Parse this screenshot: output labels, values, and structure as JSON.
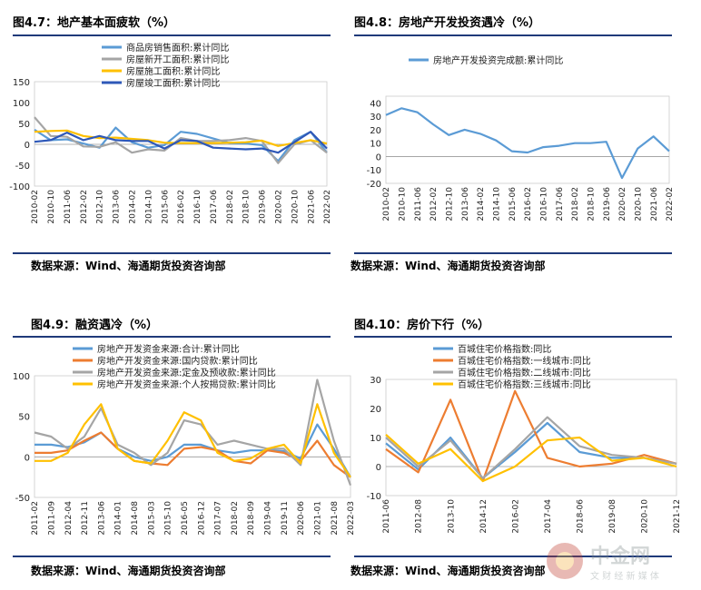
{
  "panels": [
    {
      "title": "图4.7：地产基本面疲软（%）",
      "source": "数据来源：Wind、海通期货投资咨询部"
    },
    {
      "title": "图4.8：房地产开发投资遇冷（%）",
      "source": "数据来源：Wind、海通期货投资咨询部"
    },
    {
      "title": "图4.9：融资遇冷（%）",
      "source": "数据来源：Wind、海通期货投资咨询部"
    },
    {
      "title": "图4.10：房价下行（%）",
      "source": "数据来源：Wind、海通期货投资咨询部"
    }
  ],
  "watermark": {
    "brand": "中金网",
    "sub": "文 财 经 新 媒 体"
  },
  "chart_data": [
    {
      "type": "line",
      "ylim": [
        -100,
        150
      ],
      "yticks": [
        -100,
        -50,
        0,
        50,
        100,
        150
      ],
      "categories": [
        "2010-02",
        "2010-10",
        "2011-06",
        "2012-02",
        "2012-10",
        "2013-06",
        "2014-02",
        "2014-10",
        "2015-06",
        "2016-02",
        "2016-10",
        "2017-06",
        "2018-02",
        "2018-10",
        "2019-06",
        "2020-02",
        "2020-10",
        "2021-06",
        "2022-02"
      ],
      "series": [
        {
          "name": "商品房销售面积:累计同比",
          "color": "#5b9bd5",
          "values": [
            35,
            10,
            12,
            2,
            -8,
            40,
            5,
            -8,
            -2,
            30,
            25,
            14,
            3,
            2,
            -2,
            -40,
            10,
            30,
            -20
          ]
        },
        {
          "name": "房屋新开工面积:累计同比",
          "color": "#a5a5a5",
          "values": [
            65,
            20,
            18,
            -5,
            -6,
            5,
            -20,
            -12,
            -15,
            15,
            8,
            8,
            10,
            15,
            8,
            -45,
            0,
            10,
            -20
          ]
        },
        {
          "name": "房屋施工面积:累计同比",
          "color": "#ffc000",
          "values": [
            30,
            32,
            33,
            20,
            15,
            16,
            13,
            10,
            4,
            3,
            3,
            3,
            4,
            5,
            9,
            -4,
            3,
            10,
            2
          ]
        },
        {
          "name": "房屋竣工面积:累计同比",
          "color": "#2e58b8",
          "values": [
            6,
            10,
            28,
            10,
            20,
            10,
            8,
            8,
            -10,
            10,
            8,
            -8,
            -10,
            -12,
            -10,
            -20,
            5,
            30,
            -10
          ]
        }
      ]
    },
    {
      "type": "line",
      "ylim": [
        -20,
        45
      ],
      "yticks": [
        -20,
        -10,
        0,
        10,
        20,
        30,
        40
      ],
      "categories": [
        "2010-02",
        "2010-10",
        "2011-06",
        "2012-02",
        "2012-10",
        "2013-06",
        "2014-02",
        "2014-10",
        "2015-06",
        "2016-02",
        "2016-10",
        "2017-06",
        "2018-02",
        "2018-10",
        "2019-06",
        "2020-02",
        "2020-10",
        "2021-06",
        "2022-02"
      ],
      "series": [
        {
          "name": "房地产开发投资完成额:累计同比",
          "color": "#5b9bd5",
          "values": [
            31,
            36,
            33,
            24,
            16,
            20,
            17,
            12,
            4,
            3,
            7,
            8,
            10,
            10,
            11,
            -16,
            6,
            15,
            4
          ]
        }
      ]
    },
    {
      "type": "line",
      "ylim": [
        -50,
        100
      ],
      "yticks": [
        -50,
        0,
        50,
        100
      ],
      "categories": [
        "2011-02",
        "2011-09",
        "2012-04",
        "2012-11",
        "2013-06",
        "2014-01",
        "2014-08",
        "2015-03",
        "2015-10",
        "2016-05",
        "2016-12",
        "2017-07",
        "2018-02",
        "2018-09",
        "2019-04",
        "2019-11",
        "2020-06",
        "2021-01",
        "2021-08",
        "2022-03"
      ],
      "series": [
        {
          "name": "房地产开发资金来源:合计:累计同比",
          "color": "#5b9bd5",
          "values": [
            15,
            15,
            12,
            18,
            30,
            10,
            0,
            -5,
            0,
            15,
            15,
            8,
            5,
            8,
            8,
            7,
            -2,
            40,
            10,
            -25
          ]
        },
        {
          "name": "房地产开发资金来源:国内贷款:累计同比",
          "color": "#ed7d31",
          "values": [
            5,
            5,
            8,
            20,
            30,
            10,
            -5,
            -8,
            -10,
            10,
            12,
            8,
            -5,
            -8,
            8,
            5,
            -5,
            20,
            -10,
            -25
          ]
        },
        {
          "name": "房地产开发资金来源:定金及预收款:累计同比",
          "color": "#a5a5a5",
          "values": [
            30,
            25,
            10,
            25,
            60,
            15,
            5,
            -10,
            5,
            45,
            40,
            15,
            20,
            15,
            10,
            10,
            -10,
            95,
            20,
            -35
          ]
        },
        {
          "name": "房地产开发资金来源:个人按揭贷款:累计同比",
          "color": "#ffc000",
          "values": [
            -5,
            -5,
            5,
            40,
            65,
            10,
            -5,
            -8,
            20,
            55,
            45,
            5,
            -5,
            -2,
            10,
            15,
            -8,
            65,
            5,
            -25
          ]
        }
      ]
    },
    {
      "type": "line",
      "ylim": [
        -10,
        30
      ],
      "yticks": [
        -10,
        0,
        10,
        20,
        30
      ],
      "categories": [
        "2011-06",
        "2012-08",
        "2013-10",
        "2014-12",
        "2016-02",
        "2017-04",
        "2018-06",
        "2019-08",
        "2020-10",
        "2021-12"
      ],
      "series": [
        {
          "name": "百城住宅价格指数:同比",
          "color": "#5b9bd5",
          "values": [
            8,
            -1,
            10,
            -4,
            5,
            15,
            5,
            3,
            3,
            1
          ]
        },
        {
          "name": "百城住宅价格指数:一线城市:同比",
          "color": "#ed7d31",
          "values": [
            6,
            -2,
            23,
            -5,
            26,
            3,
            0,
            1,
            4,
            1
          ]
        },
        {
          "name": "百城住宅价格指数:二线城市:同比",
          "color": "#a5a5a5",
          "values": [
            10,
            0,
            9,
            -4,
            6,
            17,
            7,
            4,
            3,
            1
          ]
        },
        {
          "name": "百城住宅价格指数:三线城市:同比",
          "color": "#ffc000",
          "values": [
            11,
            1,
            6,
            -5,
            0,
            9,
            10,
            2,
            3,
            0
          ]
        }
      ]
    }
  ]
}
